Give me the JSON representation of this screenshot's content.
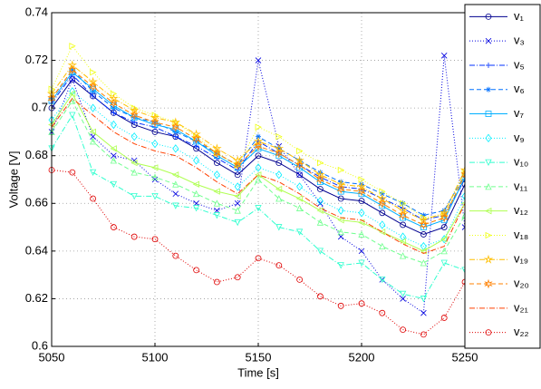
{
  "chart_data": {
    "type": "line",
    "xlabel": "Time [s]",
    "ylabel": "Voltage [V]",
    "x": [
      5050,
      5060,
      5070,
      5080,
      5090,
      5100,
      5110,
      5120,
      5130,
      5140,
      5150,
      5160,
      5170,
      5180,
      5190,
      5200,
      5210,
      5220,
      5230,
      5240,
      5250
    ],
    "xlim": [
      5050,
      5250
    ],
    "xticks": [
      5050,
      5100,
      5150,
      5200,
      5250
    ],
    "ylim": [
      0.6,
      0.74
    ],
    "yticks": [
      0.6,
      0.62,
      0.64,
      0.66,
      0.68,
      0.7,
      0.72,
      0.74
    ],
    "grid": true,
    "legend": "outside-right",
    "series": [
      {
        "name": "v₁",
        "color": "#00008f",
        "line": "solid",
        "marker": "o",
        "values": [
          0.7,
          0.712,
          0.705,
          0.698,
          0.693,
          0.69,
          0.688,
          0.683,
          0.677,
          0.672,
          0.68,
          0.677,
          0.672,
          0.666,
          0.662,
          0.661,
          0.656,
          0.651,
          0.647,
          0.65,
          0.668
        ]
      },
      {
        "name": "v₃",
        "color": "#0000df",
        "line": "dotted",
        "marker": "x",
        "values": [
          0.69,
          0.712,
          0.688,
          0.68,
          0.678,
          0.67,
          0.664,
          0.66,
          0.657,
          0.66,
          0.72,
          0.684,
          0.672,
          0.66,
          0.646,
          0.64,
          0.628,
          0.62,
          0.614,
          0.722,
          0.65
        ]
      },
      {
        "name": "v₅",
        "color": "#0030ff",
        "line": "dashdot",
        "marker": "+",
        "values": [
          0.702,
          0.714,
          0.705,
          0.698,
          0.694,
          0.692,
          0.688,
          0.684,
          0.679,
          0.674,
          0.686,
          0.681,
          0.676,
          0.671,
          0.667,
          0.666,
          0.662,
          0.658,
          0.653,
          0.655,
          0.67
        ]
      },
      {
        "name": "v₆",
        "color": "#0070ff",
        "line": "dashed",
        "marker": "*",
        "values": [
          0.704,
          0.716,
          0.707,
          0.7,
          0.696,
          0.694,
          0.69,
          0.686,
          0.681,
          0.676,
          0.688,
          0.683,
          0.678,
          0.673,
          0.669,
          0.668,
          0.664,
          0.66,
          0.655,
          0.657,
          0.672
        ]
      },
      {
        "name": "v₇",
        "color": "#00afff",
        "line": "solid",
        "marker": "s",
        "values": [
          0.703,
          0.715,
          0.708,
          0.701,
          0.696,
          0.693,
          0.691,
          0.686,
          0.68,
          0.675,
          0.683,
          0.68,
          0.675,
          0.669,
          0.665,
          0.664,
          0.659,
          0.654,
          0.65,
          0.653,
          0.671
        ]
      },
      {
        "name": "v₉",
        "color": "#00efff",
        "line": "dotted",
        "marker": "d",
        "values": [
          0.695,
          0.707,
          0.7,
          0.693,
          0.688,
          0.685,
          0.683,
          0.678,
          0.672,
          0.667,
          0.675,
          0.672,
          0.667,
          0.661,
          0.657,
          0.656,
          0.651,
          0.646,
          0.642,
          0.645,
          0.663
        ]
      },
      {
        "name": "v₁₀",
        "color": "#30ffcf",
        "line": "dashdot",
        "marker": "v",
        "values": [
          0.683,
          0.697,
          0.673,
          0.668,
          0.663,
          0.663,
          0.659,
          0.658,
          0.655,
          0.652,
          0.658,
          0.65,
          0.648,
          0.64,
          0.634,
          0.635,
          0.628,
          0.622,
          0.62,
          0.635,
          0.632
        ]
      },
      {
        "name": "v₁₁",
        "color": "#70ff8f",
        "line": "dashed",
        "marker": "^",
        "values": [
          0.69,
          0.703,
          0.686,
          0.678,
          0.673,
          0.671,
          0.668,
          0.664,
          0.66,
          0.657,
          0.67,
          0.662,
          0.658,
          0.652,
          0.648,
          0.647,
          0.642,
          0.638,
          0.635,
          0.64,
          0.655
        ]
      },
      {
        "name": "v₁₂",
        "color": "#afff50",
        "line": "solid",
        "marker": "<",
        "values": [
          0.693,
          0.706,
          0.69,
          0.683,
          0.677,
          0.675,
          0.672,
          0.668,
          0.665,
          0.663,
          0.672,
          0.666,
          0.662,
          0.657,
          0.653,
          0.652,
          0.648,
          0.644,
          0.64,
          0.645,
          0.66
        ]
      },
      {
        "name": "v₁₈",
        "color": "#efff10",
        "line": "dotted",
        "marker": ">",
        "values": [
          0.708,
          0.726,
          0.715,
          0.706,
          0.7,
          0.697,
          0.694,
          0.688,
          0.681,
          0.676,
          0.692,
          0.688,
          0.682,
          0.677,
          0.674,
          0.67,
          0.665,
          0.66,
          0.654,
          0.655,
          0.673
        ]
      },
      {
        "name": "v₁₉",
        "color": "#ffbf00",
        "line": "dashdot",
        "marker": "p",
        "values": [
          0.706,
          0.718,
          0.711,
          0.704,
          0.699,
          0.696,
          0.694,
          0.689,
          0.683,
          0.678,
          0.686,
          0.683,
          0.678,
          0.672,
          0.668,
          0.667,
          0.662,
          0.657,
          0.653,
          0.656,
          0.674
        ]
      },
      {
        "name": "v₂₀",
        "color": "#ff8000",
        "line": "dashed",
        "marker": "h",
        "values": [
          0.704,
          0.716,
          0.709,
          0.702,
          0.697,
          0.694,
          0.692,
          0.687,
          0.681,
          0.676,
          0.684,
          0.681,
          0.676,
          0.67,
          0.666,
          0.665,
          0.66,
          0.655,
          0.651,
          0.654,
          0.672
        ]
      },
      {
        "name": "v₂₁",
        "color": "#ff4000",
        "line": "dashdot",
        "marker": "none",
        "values": [
          0.692,
          0.704,
          0.697,
          0.69,
          0.685,
          0.682,
          0.68,
          0.675,
          0.669,
          0.664,
          0.672,
          0.669,
          0.664,
          0.658,
          0.654,
          0.653,
          0.648,
          0.643,
          0.639,
          0.642,
          0.66
        ]
      },
      {
        "name": "v₂₂",
        "color": "#df0000",
        "line": "dotted",
        "marker": "o",
        "values": [
          0.674,
          0.673,
          0.662,
          0.65,
          0.646,
          0.645,
          0.638,
          0.632,
          0.627,
          0.629,
          0.637,
          0.634,
          0.628,
          0.621,
          0.617,
          0.618,
          0.614,
          0.607,
          0.605,
          0.612,
          0.627
        ]
      }
    ]
  }
}
